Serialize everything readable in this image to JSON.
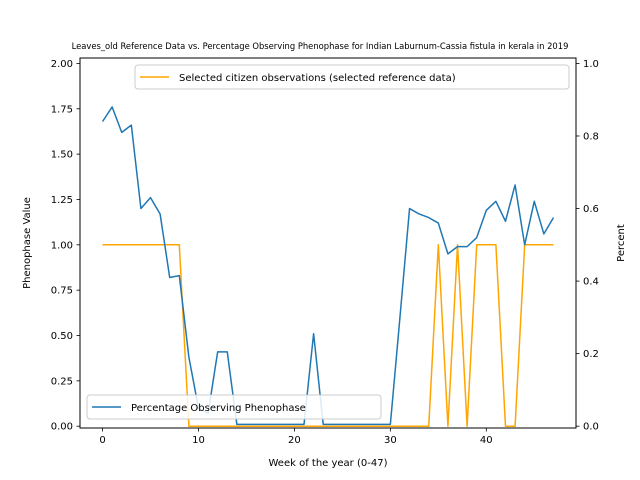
{
  "chart_data": {
    "type": "line",
    "title": "Leaves_old Reference Data vs. Percentage Observing Phenophase for Indian Laburnum-Cassia fistula in kerala in 2019",
    "xlabel": "Week of the year (0-47)",
    "ylabel_left": "Phenophase Value",
    "ylabel_right": "Percent",
    "xlim": [
      -2.35,
      49.35
    ],
    "ylim_left": [
      -0.01,
      2.03
    ],
    "ylim_right": [
      -0.005,
      1.015
    ],
    "x_ticks": [
      0,
      10,
      20,
      30,
      40
    ],
    "y_ticks_left": [
      0.0,
      0.25,
      0.5,
      0.75,
      1.0,
      1.25,
      1.5,
      1.75,
      2.0
    ],
    "y_ticks_right": [
      0.0,
      0.2,
      0.4,
      0.6,
      0.8,
      1.0
    ],
    "x_tick_labels": [
      "0",
      "10",
      "20",
      "30",
      "40"
    ],
    "y_tick_labels_left": [
      "0.00",
      "0.25",
      "0.50",
      "0.75",
      "1.00",
      "1.25",
      "1.50",
      "1.75",
      "2.00"
    ],
    "y_tick_labels_right": [
      "0.0",
      "0.2",
      "0.4",
      "0.6",
      "0.8",
      "1.0"
    ],
    "grid": false,
    "series": [
      {
        "name": "Selected citizen observations (selected reference data)",
        "axis": "left",
        "color": "#ffa500",
        "legend_position": "upper-right",
        "x": [
          0,
          1,
          2,
          3,
          4,
          5,
          6,
          7,
          8,
          9,
          10,
          11,
          12,
          13,
          14,
          15,
          16,
          17,
          18,
          19,
          20,
          21,
          22,
          23,
          24,
          25,
          26,
          27,
          28,
          29,
          30,
          31,
          32,
          33,
          34,
          35,
          36,
          37,
          38,
          39,
          40,
          41,
          42,
          43,
          44,
          45,
          46,
          47
        ],
        "values": [
          1,
          1,
          1,
          1,
          1,
          1,
          1,
          1,
          1,
          0,
          0,
          0,
          0,
          0,
          0,
          0,
          0,
          0,
          0,
          0,
          0,
          0,
          0,
          0,
          0,
          0,
          0,
          0,
          0,
          0,
          0,
          0,
          0,
          0,
          0,
          1,
          0,
          1,
          0,
          1,
          1,
          1,
          0,
          0,
          1,
          1,
          1,
          1
        ]
      },
      {
        "name": "Percentage Observing Phenophase",
        "axis": "right",
        "color": "#1f77b4",
        "legend_position": "lower-left",
        "x": [
          0,
          1,
          2,
          3,
          4,
          5,
          6,
          7,
          8,
          9,
          10,
          11,
          12,
          13,
          14,
          15,
          16,
          17,
          18,
          19,
          20,
          21,
          22,
          23,
          24,
          25,
          26,
          27,
          28,
          29,
          30,
          31,
          32,
          33,
          34,
          35,
          36,
          37,
          38,
          39,
          40,
          41,
          42,
          43,
          44,
          45,
          46,
          47
        ],
        "values": [
          0.84,
          0.88,
          0.81,
          0.83,
          0.6,
          0.63,
          0.585,
          0.41,
          0.415,
          0.19,
          0.05,
          0.035,
          0.205,
          0.205,
          0.005,
          0.005,
          0.005,
          0.005,
          0.005,
          0.005,
          0.005,
          0.005,
          0.255,
          0.005,
          0.005,
          0.005,
          0.005,
          0.005,
          0.005,
          0.005,
          0.005,
          0.3,
          0.6,
          0.585,
          0.575,
          0.56,
          0.475,
          0.495,
          0.495,
          0.52,
          0.595,
          0.62,
          0.565,
          0.665,
          0.5,
          0.62,
          0.53,
          0.575
        ]
      }
    ]
  }
}
